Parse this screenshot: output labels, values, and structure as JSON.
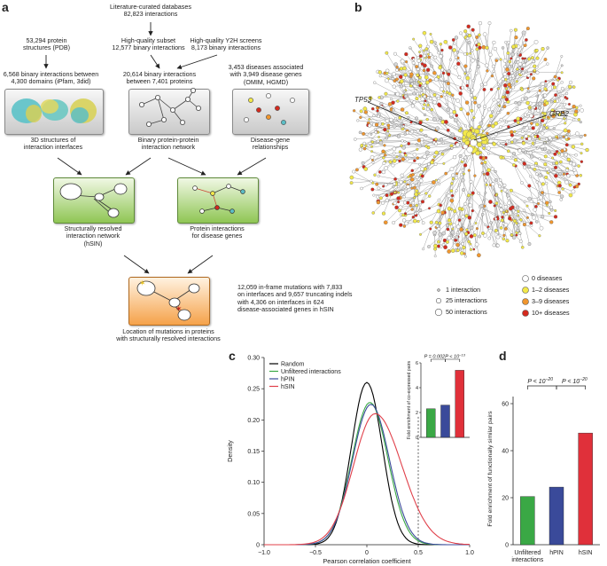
{
  "panel_a": {
    "letter": "a",
    "top_label": [
      "Literature-curated databases",
      "82,823 interactions"
    ],
    "pdb_label": [
      "53,294 protein",
      "structures (PDB)"
    ],
    "hq_label": [
      "High-quality subset",
      "12,577 binary interactions"
    ],
    "y2h_label": [
      "High-quality Y2H screens",
      "8,173 binary interactions"
    ],
    "domains_label": [
      "6,568 binary interactions between",
      "4,300 domains (iPfam, 3did)"
    ],
    "proteins_label": [
      "20,614 binary interactions",
      "between 7,401 proteins"
    ],
    "diseases_label": [
      "3,453 diseases associated",
      "with 3,949 disease genes",
      "(OMIM, HGMD)"
    ],
    "box1_caption": [
      "3D structures of",
      "interaction interfaces"
    ],
    "box2_caption": [
      "Binary protein-protein",
      "interaction network"
    ],
    "box3_caption": [
      "Disease-gene",
      "relationships"
    ],
    "box4_caption": [
      "Structurally resolved",
      "interaction network",
      "(hSIN)"
    ],
    "box5_caption": [
      "Protein interactions",
      "for disease genes"
    ],
    "box6_caption": [
      "Location of mutations in proteins",
      "with structurally resolved interactions"
    ],
    "mutations_text": [
      "12,059 in-frame mutations with 7,833",
      "on interfaces and 9,657 truncating indels",
      "with 4,306 on interfaces in 624",
      "disease-associated genes in hSIN"
    ]
  },
  "panel_b": {
    "letter": "b",
    "gene1": "TP53",
    "gene2": "GRB2",
    "size_legend": [
      "1 interaction",
      "25 interactions",
      "50 interactions"
    ],
    "color_legend": [
      {
        "label": "0 diseases",
        "color": "#ffffff"
      },
      {
        "label": "1–2 diseases",
        "color": "#f2e84a"
      },
      {
        "label": "3–9 diseases",
        "color": "#f0962e"
      },
      {
        "label": "10+ diseases",
        "color": "#d42a1e"
      }
    ]
  },
  "panel_c": {
    "letter": "c",
    "legend": [
      {
        "label": "Random",
        "color": "#000000"
      },
      {
        "label": "Unfiltered interactions",
        "color": "#3aa845"
      },
      {
        "label": "hPIN",
        "color": "#3a4a9a"
      },
      {
        "label": "hSIN",
        "color": "#e0404a"
      }
    ],
    "inset_stats": {
      "p1": "P = 0.002",
      "p2": "P < 10",
      "p2_exp": "−13"
    }
  },
  "panel_d": {
    "letter": "d",
    "stats": {
      "p1": "P < 10",
      "p1_exp": "−20",
      "p2": "P < 10",
      "p2_exp": "−20"
    }
  },
  "chart_data": [
    {
      "type": "line",
      "xlabel": "Pearson correlation coefficient",
      "ylabel": "Density",
      "xlim": [
        -1.0,
        1.0
      ],
      "ylim": [
        0,
        0.3
      ],
      "xticks": [
        "−1.0",
        "−0.5",
        "0",
        "0.5",
        "1.0"
      ],
      "yticks": [
        "0",
        "0.05",
        "0.10",
        "0.15",
        "0.20",
        "0.25",
        "0.30"
      ],
      "reference_line_x": 0.5,
      "series": [
        {
          "name": "Random",
          "color": "#000000",
          "mu": 0.0,
          "sigma": 0.15,
          "peak": 0.26
        },
        {
          "name": "Unfiltered interactions",
          "color": "#3aa845",
          "mu": 0.03,
          "sigma": 0.175,
          "peak": 0.228
        },
        {
          "name": "hPIN",
          "color": "#3a4a9a",
          "mu": 0.04,
          "sigma": 0.18,
          "peak": 0.225
        },
        {
          "name": "hSIN",
          "color": "#e0404a",
          "mu": 0.08,
          "sigma": 0.21,
          "peak": 0.21
        }
      ]
    },
    {
      "type": "bar",
      "ylabel": "Fold enrichment of co-expressed pairs",
      "ylim": [
        0,
        6
      ],
      "yticks": [
        "0",
        "2",
        "4",
        "6"
      ],
      "categories": [
        "Unfiltered interactions",
        "hPIN",
        "hSIN"
      ],
      "values": [
        2.3,
        2.6,
        5.4
      ],
      "colors": [
        "#3aa845",
        "#3a4a9a",
        "#e0303a"
      ]
    },
    {
      "type": "bar",
      "ylabel": "Fold enrichment of functionally similar pairs",
      "ylim": [
        0,
        60
      ],
      "yticks": [
        "0",
        "20",
        "40",
        "60"
      ],
      "categories": [
        "Unfiltered interactions",
        "hPIN",
        "hSIN"
      ],
      "category_labels": [
        [
          "Unfiltered",
          "interactions"
        ],
        [
          "hPIN"
        ],
        [
          "hSIN"
        ]
      ],
      "values": [
        20.5,
        24.5,
        47.5
      ],
      "colors": [
        "#3aa845",
        "#3a4a9a",
        "#e0303a"
      ]
    }
  ]
}
